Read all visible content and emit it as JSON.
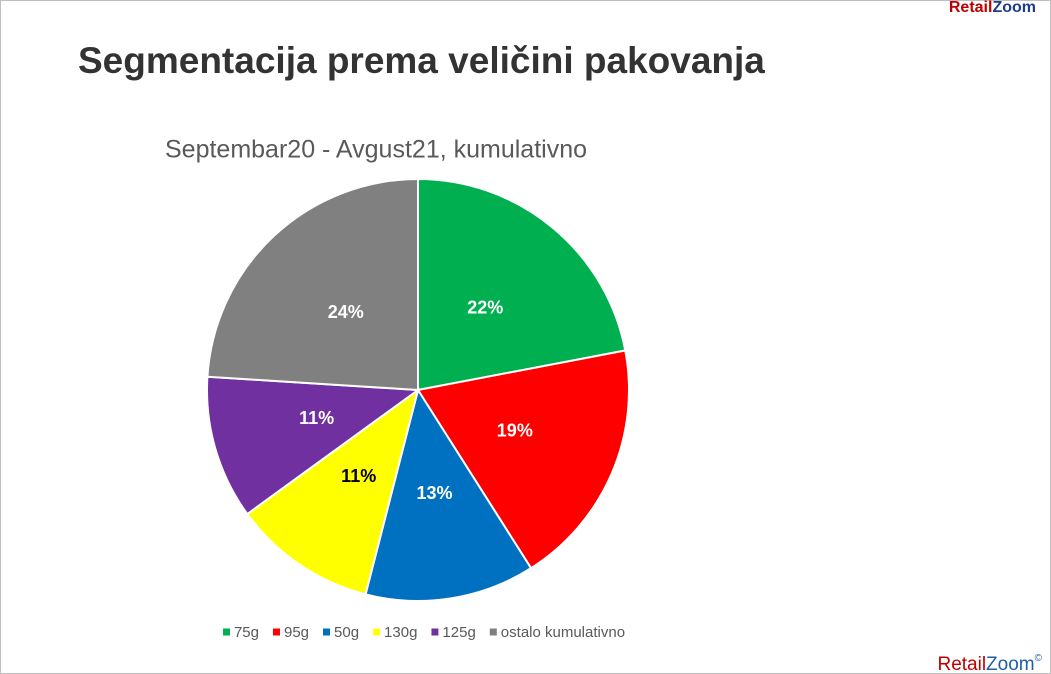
{
  "header_brand": [
    "Retail",
    "Zoom"
  ],
  "footer_brand": [
    "Retail",
    "Zoom",
    "©"
  ],
  "chart_data": {
    "type": "pie",
    "title": "Segmentacija prema veličini pakovanja",
    "subtitle": "Septembar20 - Avgust21, kumulativno",
    "categories": [
      "75g",
      "95g",
      "50g",
      "130g",
      "125g",
      "ostalo kumulativno"
    ],
    "values": [
      22,
      19,
      13,
      11,
      11,
      24
    ],
    "value_labels": [
      "22%",
      "19%",
      "13%",
      "11%",
      "11%",
      "24%"
    ],
    "colors": [
      "#00b050",
      "#ff0000",
      "#0070c0",
      "#ffff00",
      "#7030a0",
      "#808080"
    ],
    "label_colors": [
      "#ffffff",
      "#ffffff",
      "#ffffff",
      "#000000",
      "#ffffff",
      "#ffffff"
    ],
    "legend": "bottom"
  }
}
